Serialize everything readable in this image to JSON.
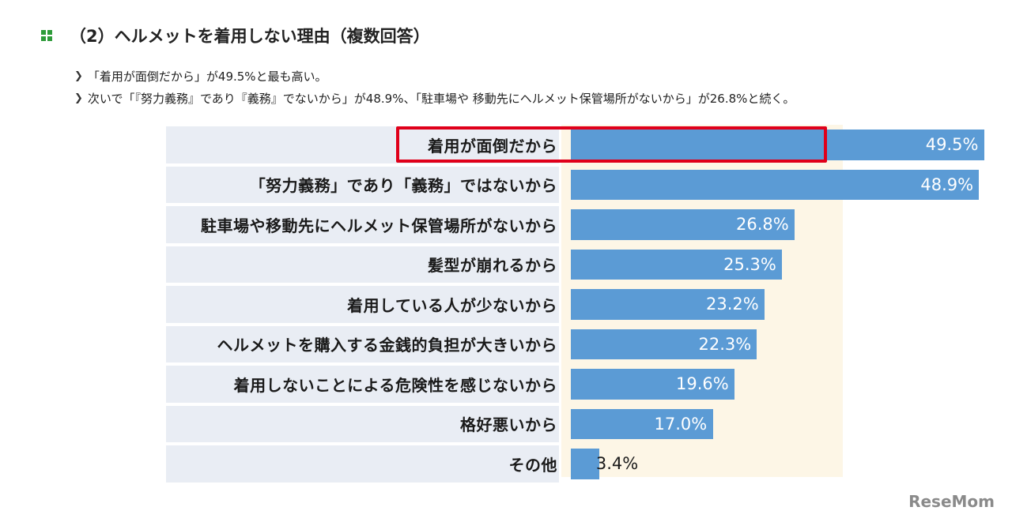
{
  "heading": {
    "text": "（2）ヘルメットを着用しない理由（複数回答）",
    "icon": "green-grid-icon",
    "accent": "#2e9b3a"
  },
  "bullets": [
    "「着用が面倒だから」が49.5%と最も高い。",
    "次いで「『努力義務』であり『義務』でないから」が48.9%、「駐車場や 移動先にヘルメット保管場所がないから」が26.8%と続く。"
  ],
  "chart_data": {
    "type": "bar",
    "orientation": "horizontal",
    "categories": [
      "着用が面倒だから",
      "「努力義務」であり「義務」ではないから",
      "駐車場や移動先にヘルメット保管場所がないから",
      "髪型が崩れるから",
      "着用している人が少ないから",
      "ヘルメットを購入する金銭的負担が大きいから",
      "着用しないことによる危険性を感じないから",
      "格好悪いから",
      "その他"
    ],
    "values": [
      49.5,
      48.9,
      26.8,
      25.3,
      23.2,
      22.3,
      19.6,
      17.0,
      3.4
    ],
    "value_labels": [
      "49.5%",
      "48.9%",
      "26.8%",
      "25.3%",
      "23.2%",
      "22.3%",
      "19.6%",
      "17.0%",
      "3.4%"
    ],
    "highlighted_index": 0,
    "bar_color": "#5b9bd5",
    "highlight_color": "#e0001a",
    "xlim": [
      0,
      50
    ]
  },
  "brand": {
    "text": "ReseMom"
  }
}
